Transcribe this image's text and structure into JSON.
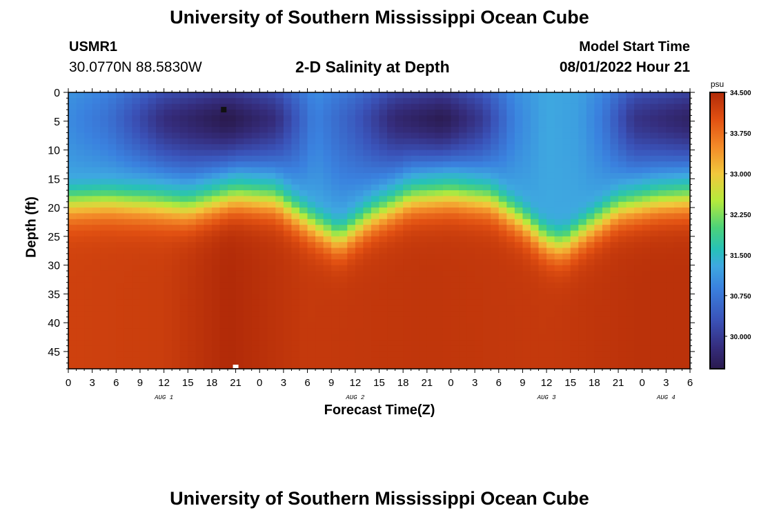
{
  "header": {
    "title": "University of Southern Mississippi Ocean Cube",
    "station": "USMR1",
    "coordinates": "30.0770N  88.5830W",
    "subtitle": "2-D Salinity at Depth",
    "model_start_label": "Model Start Time",
    "model_start_value": "08/01/2022 Hour 21"
  },
  "footer": {
    "title": "University of Southern Mississippi Ocean Cube"
  },
  "colors": {
    "low": "#2a1a4e",
    "mid": "#3ea8e0",
    "high": "#b12a08",
    "marker_dark": "#111111",
    "marker_light": "#ffffff"
  },
  "chart_data": {
    "type": "heatmap",
    "title": "2-D Salinity at Depth",
    "xlabel": "Forecast Time(Z)",
    "ylabel": "Depth (ft)",
    "x_ticks": [
      "0",
      "3",
      "6",
      "9",
      "12",
      "15",
      "18",
      "21",
      "0",
      "3",
      "6",
      "9",
      "12",
      "15",
      "18",
      "21",
      "0",
      "3",
      "6",
      "9",
      "12",
      "15",
      "18",
      "21",
      "0",
      "3",
      "6"
    ],
    "x_range_hours": [
      0,
      78
    ],
    "date_labels": [
      {
        "label": "AUG 1",
        "hour": 12
      },
      {
        "label": "AUG 2",
        "hour": 36
      },
      {
        "label": "AUG 3",
        "hour": 60
      },
      {
        "label": "AUG 4",
        "hour": 75
      }
    ],
    "y_ticks": [
      "0",
      "5",
      "10",
      "15",
      "20",
      "25",
      "30",
      "35",
      "40",
      "45"
    ],
    "y_range_ft": [
      0,
      48
    ],
    "colorbar": {
      "unit": "psu",
      "range": [
        29.4,
        34.5
      ],
      "ticks": [
        "34.500",
        "33.750",
        "33.000",
        "32.250",
        "31.500",
        "30.750",
        "30.000"
      ],
      "stops": [
        {
          "value": 29.4,
          "color": "#2a1a4e"
        },
        {
          "value": 29.8,
          "color": "#352d7d"
        },
        {
          "value": 30.3,
          "color": "#3a52b8"
        },
        {
          "value": 30.9,
          "color": "#3a82df"
        },
        {
          "value": 31.3,
          "color": "#3ea8e0"
        },
        {
          "value": 31.6,
          "color": "#27c1b8"
        },
        {
          "value": 32.0,
          "color": "#4bd27a"
        },
        {
          "value": 32.5,
          "color": "#b5ea3c"
        },
        {
          "value": 33.0,
          "color": "#f2c83c"
        },
        {
          "value": 33.5,
          "color": "#f38a28"
        },
        {
          "value": 34.0,
          "color": "#e25112"
        },
        {
          "value": 34.5,
          "color": "#b12a08"
        }
      ]
    },
    "salinity_min_surface": [
      {
        "hour": 0,
        "value": 31.0
      },
      {
        "hour": 5,
        "value": 30.7
      },
      {
        "hour": 12,
        "value": 29.8
      },
      {
        "hour": 20,
        "value": 29.4
      },
      {
        "hour": 26,
        "value": 29.8
      },
      {
        "hour": 31,
        "value": 30.9
      },
      {
        "hour": 36,
        "value": 30.4
      },
      {
        "hour": 41,
        "value": 29.7
      },
      {
        "hour": 47,
        "value": 29.45
      },
      {
        "hour": 52,
        "value": 30.0
      },
      {
        "hour": 56,
        "value": 30.9
      },
      {
        "hour": 60,
        "value": 31.3
      },
      {
        "hour": 64,
        "value": 31.2
      },
      {
        "hour": 67,
        "value": 30.8
      },
      {
        "hour": 71,
        "value": 29.9
      },
      {
        "hour": 78,
        "value": 29.6
      }
    ],
    "halocline_depth_ft": [
      {
        "hour": 0,
        "value": 17.5
      },
      {
        "hour": 5,
        "value": 17.2
      },
      {
        "hour": 11,
        "value": 17.8
      },
      {
        "hour": 15,
        "value": 18.5
      },
      {
        "hour": 21,
        "value": 16.5
      },
      {
        "hour": 26,
        "value": 17.0
      },
      {
        "hour": 31,
        "value": 21.5
      },
      {
        "hour": 34,
        "value": 23.8
      },
      {
        "hour": 38,
        "value": 20.0
      },
      {
        "hour": 43,
        "value": 16.8
      },
      {
        "hour": 48,
        "value": 16.2
      },
      {
        "hour": 53,
        "value": 17.0
      },
      {
        "hour": 57,
        "value": 20.5
      },
      {
        "hour": 60,
        "value": 24.0
      },
      {
        "hour": 62,
        "value": 24.8
      },
      {
        "hour": 65,
        "value": 22.0
      },
      {
        "hour": 69,
        "value": 18.5
      },
      {
        "hour": 74,
        "value": 17.2
      },
      {
        "hour": 78,
        "value": 16.8
      }
    ],
    "salinity_max_bottom": [
      {
        "hour": 0,
        "value": 34.2
      },
      {
        "hour": 12,
        "value": 34.25
      },
      {
        "hour": 20,
        "value": 34.5
      },
      {
        "hour": 30,
        "value": 34.3
      },
      {
        "hour": 45,
        "value": 34.35
      },
      {
        "hour": 60,
        "value": 34.3
      },
      {
        "hour": 72,
        "value": 34.4
      },
      {
        "hour": 78,
        "value": 34.4
      }
    ],
    "markers": [
      {
        "hour": 19.5,
        "depth_ft": 3.0,
        "color": "#111111"
      },
      {
        "hour": 21.0,
        "depth_ft": 47.8,
        "color": "#ffffff"
      }
    ]
  }
}
